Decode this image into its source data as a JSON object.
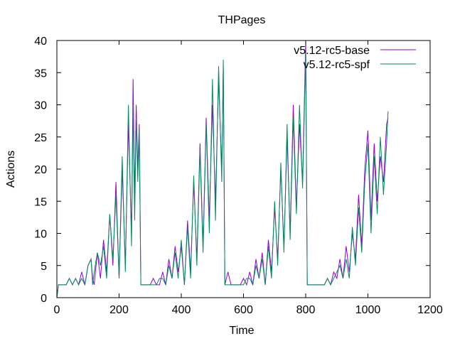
{
  "chart_data": {
    "type": "line",
    "title": "THPages",
    "xlabel": "Time",
    "ylabel": "Actions",
    "xlim": [
      0,
      1200
    ],
    "ylim": [
      0,
      40
    ],
    "xticks": [
      0,
      200,
      400,
      600,
      800,
      1000,
      1200
    ],
    "yticks": [
      0,
      5,
      10,
      15,
      20,
      25,
      30,
      35,
      40
    ],
    "xtick_labels": [
      "0",
      "200",
      "400",
      "600",
      "800",
      "1000",
      "1200"
    ],
    "ytick_labels": [
      "0",
      "5",
      "10",
      "15",
      "20",
      "25",
      "30",
      "35",
      "40"
    ],
    "grid": false,
    "legend_position": "top-right",
    "series": [
      {
        "name": "v5.12-rc5-base",
        "color": "#9400d3",
        "x": [
          0,
          5,
          10,
          20,
          30,
          40,
          50,
          60,
          70,
          80,
          90,
          100,
          110,
          115,
          120,
          130,
          140,
          150,
          160,
          170,
          180,
          190,
          200,
          210,
          220,
          230,
          240,
          245,
          250,
          255,
          260,
          265,
          270,
          280,
          290,
          300,
          310,
          320,
          330,
          340,
          350,
          360,
          370,
          380,
          390,
          400,
          410,
          420,
          430,
          440,
          450,
          460,
          470,
          480,
          490,
          500,
          510,
          520,
          530,
          535,
          540,
          550,
          560,
          570,
          580,
          590,
          600,
          610,
          620,
          630,
          640,
          650,
          660,
          670,
          680,
          690,
          700,
          710,
          720,
          730,
          740,
          750,
          760,
          770,
          780,
          790,
          800,
          805,
          810,
          820,
          830,
          840,
          850,
          860,
          870,
          880,
          890,
          900,
          910,
          920,
          930,
          940,
          950,
          960,
          970,
          980,
          990,
          1000,
          1010,
          1020,
          1030,
          1040,
          1050,
          1060,
          1065
        ],
        "y": [
          0,
          2,
          2,
          2,
          2,
          3,
          2,
          3,
          2,
          4,
          2,
          5,
          6,
          3,
          2,
          7,
          3,
          9,
          4,
          13,
          5,
          18,
          3,
          20,
          5,
          27,
          10,
          34,
          15,
          30,
          20,
          27,
          2,
          2,
          2,
          2,
          3,
          2,
          2,
          4,
          2,
          6,
          3,
          8,
          4,
          8,
          2,
          12,
          4,
          18,
          6,
          24,
          8,
          28,
          12,
          30,
          15,
          34,
          20,
          36,
          2,
          4,
          2,
          2,
          2,
          2,
          3,
          2,
          4,
          2,
          6,
          3,
          7,
          2,
          9,
          4,
          14,
          6,
          20,
          8,
          25,
          10,
          30,
          14,
          27,
          18,
          40,
          2,
          2,
          2,
          2,
          2,
          2,
          2,
          3,
          2,
          4,
          3,
          6,
          3,
          8,
          4,
          10,
          6,
          16,
          8,
          20,
          26,
          12,
          24,
          15,
          22,
          18,
          27,
          28
        ]
      },
      {
        "name": "v5.12-rc5-spf",
        "color": "#008b5c",
        "x": [
          0,
          5,
          10,
          20,
          30,
          40,
          50,
          60,
          70,
          80,
          90,
          100,
          110,
          115,
          120,
          130,
          140,
          150,
          160,
          170,
          180,
          190,
          200,
          210,
          220,
          230,
          240,
          245,
          250,
          255,
          260,
          265,
          270,
          280,
          290,
          300,
          310,
          320,
          330,
          340,
          350,
          360,
          370,
          380,
          390,
          400,
          410,
          420,
          430,
          440,
          450,
          460,
          470,
          480,
          490,
          500,
          510,
          520,
          530,
          535,
          540,
          550,
          560,
          570,
          580,
          590,
          600,
          610,
          620,
          630,
          640,
          650,
          660,
          670,
          680,
          690,
          700,
          710,
          720,
          730,
          740,
          750,
          760,
          770,
          780,
          790,
          800,
          805,
          810,
          820,
          830,
          840,
          850,
          860,
          870,
          880,
          890,
          900,
          910,
          920,
          930,
          940,
          950,
          960,
          970,
          980,
          990,
          1000,
          1010,
          1020,
          1030,
          1040,
          1050,
          1060,
          1065
        ],
        "y": [
          0,
          2,
          2,
          2,
          2,
          3,
          2,
          3,
          2,
          3,
          2,
          5,
          6,
          2,
          4,
          7,
          5,
          8,
          3,
          13,
          6,
          16,
          3,
          22,
          4,
          30,
          8,
          30,
          12,
          28,
          18,
          26,
          2,
          2,
          2,
          2,
          2,
          2,
          3,
          3,
          2,
          5,
          3,
          7,
          3,
          9,
          2,
          11,
          3,
          19,
          5,
          23,
          7,
          27,
          10,
          34,
          12,
          36,
          18,
          37,
          2,
          2,
          2,
          2,
          2,
          2,
          2,
          3,
          3,
          2,
          5,
          3,
          6,
          2,
          8,
          3,
          15,
          5,
          21,
          7,
          27,
          9,
          28,
          13,
          30,
          17,
          38,
          2,
          2,
          2,
          2,
          2,
          2,
          2,
          3,
          2,
          3,
          4,
          5,
          3,
          6,
          3,
          11,
          5,
          14,
          7,
          18,
          24,
          10,
          22,
          13,
          25,
          16,
          24,
          29
        ]
      }
    ]
  }
}
